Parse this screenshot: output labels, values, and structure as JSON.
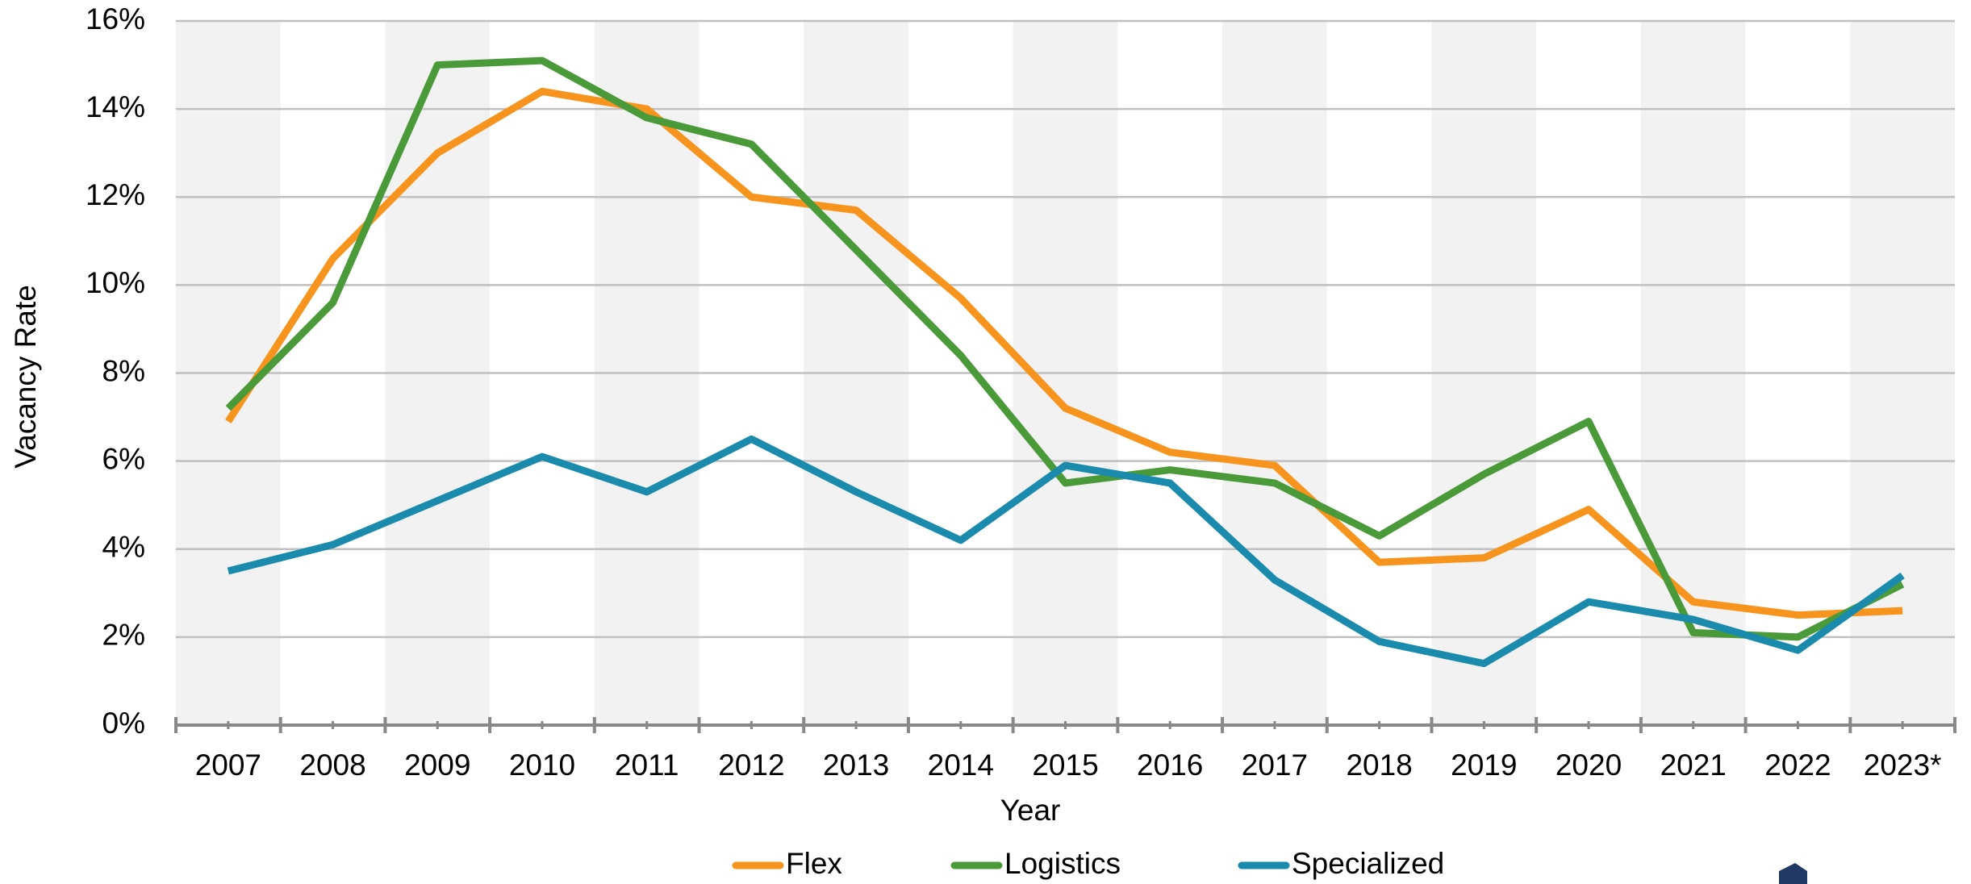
{
  "chart_data": {
    "type": "line",
    "x_label": "Year",
    "y_label": "Vacancy Rate",
    "categories": [
      "2007",
      "2008",
      "2009",
      "2010",
      "2011",
      "2012",
      "2013",
      "2014",
      "2015",
      "2016",
      "2017",
      "2018",
      "2019",
      "2020",
      "2021",
      "2022",
      "2023*"
    ],
    "series": [
      {
        "name": "Flex",
        "color": "#f7941d",
        "values": [
          6.9,
          10.6,
          13.0,
          14.4,
          14.0,
          12.0,
          11.7,
          9.7,
          7.2,
          6.2,
          5.9,
          3.7,
          3.8,
          4.9,
          2.8,
          2.5,
          2.6
        ]
      },
      {
        "name": "Logistics",
        "color": "#4b9a3a",
        "values": [
          7.2,
          9.6,
          15.0,
          15.1,
          13.8,
          13.2,
          10.8,
          8.4,
          5.5,
          5.8,
          5.5,
          4.3,
          5.7,
          6.9,
          2.1,
          2.0,
          3.2
        ]
      },
      {
        "name": "Specialized",
        "color": "#1a8aad",
        "values": [
          3.5,
          4.1,
          5.1,
          6.1,
          5.3,
          6.5,
          5.3,
          4.2,
          5.9,
          5.5,
          3.3,
          1.9,
          1.4,
          2.8,
          2.4,
          1.7,
          3.4
        ]
      }
    ],
    "ylim": [
      0,
      16
    ],
    "yticks": [
      {
        "value": 0,
        "label": "0%"
      },
      {
        "value": 2,
        "label": "2%"
      },
      {
        "value": 4,
        "label": "4%"
      },
      {
        "value": 6,
        "label": "6%"
      },
      {
        "value": 8,
        "label": "8%"
      },
      {
        "value": 10,
        "label": "10%"
      },
      {
        "value": 12,
        "label": "12%"
      },
      {
        "value": 14,
        "label": "14%"
      },
      {
        "value": 16,
        "label": "16%"
      }
    ],
    "grid": true,
    "legend": "bottom"
  }
}
